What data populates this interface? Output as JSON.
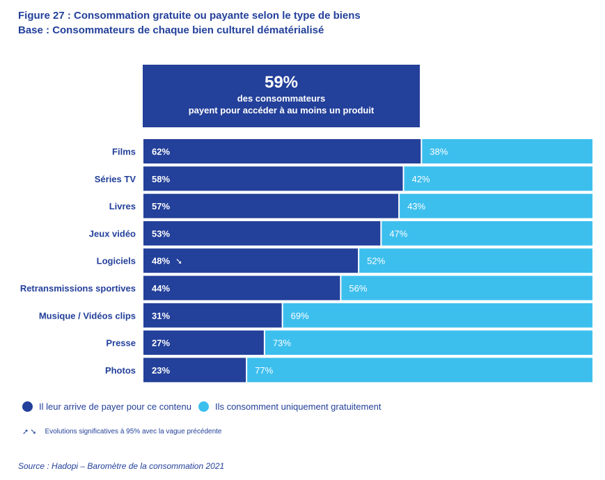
{
  "header": {
    "title": "Figure 27 : Consommation gratuite ou payante selon le type de biens",
    "subtitle": "Base : Consommateurs de chaque bien culturel dématérialisé"
  },
  "highlight": {
    "value": "59%",
    "line1": "des consommateurs",
    "line2": "payent pour accéder à au moins un produit"
  },
  "colors": {
    "paid": "#23409a",
    "free": "#3dbfee",
    "text": "#23409a"
  },
  "chart_data": {
    "type": "bar",
    "orientation": "horizontal",
    "stacked": true,
    "title": "Consommation gratuite ou payante selon le type de biens",
    "xlabel": "",
    "ylabel": "",
    "xlim": [
      0,
      100
    ],
    "grid": false,
    "legend_position": "bottom-left",
    "categories": [
      "Films",
      "Séries TV",
      "Livres",
      "Jeux vidéo",
      "Logiciels",
      "Retransmissions sportives",
      "Musique / Vidéos clips",
      "Presse",
      "Photos"
    ],
    "series": [
      {
        "name": "Il leur arrive de payer pour ce contenu",
        "values": [
          62,
          58,
          57,
          53,
          48,
          44,
          31,
          27,
          23
        ],
        "labels": [
          "62%",
          "58%",
          "57%",
          "53%",
          "48%",
          "44%",
          "31%",
          "27%",
          "23%"
        ]
      },
      {
        "name": "Ils consomment uniquement gratuitement",
        "values": [
          38,
          42,
          43,
          47,
          52,
          56,
          69,
          73,
          77
        ],
        "labels": [
          "38%",
          "42%",
          "43%",
          "47%",
          "52%",
          "56%",
          "69%",
          "73%",
          "77%"
        ]
      }
    ],
    "annotations": [
      {
        "category": "Logiciels",
        "series": "Il leur arrive de payer pour ce contenu",
        "marker": "down-arrow",
        "meaning": "Evolution significative à la baisse"
      }
    ]
  },
  "legend": {
    "paid_label": "Il leur arrive de payer pour ce contenu",
    "free_label": "Ils consomment uniquement gratuitement"
  },
  "note": {
    "arrows": "➚➘",
    "text": "Evolutions significatives à 95% avec la vague précédente"
  },
  "source": "Source : Hadopi – Baromètre de la consommation 2021"
}
